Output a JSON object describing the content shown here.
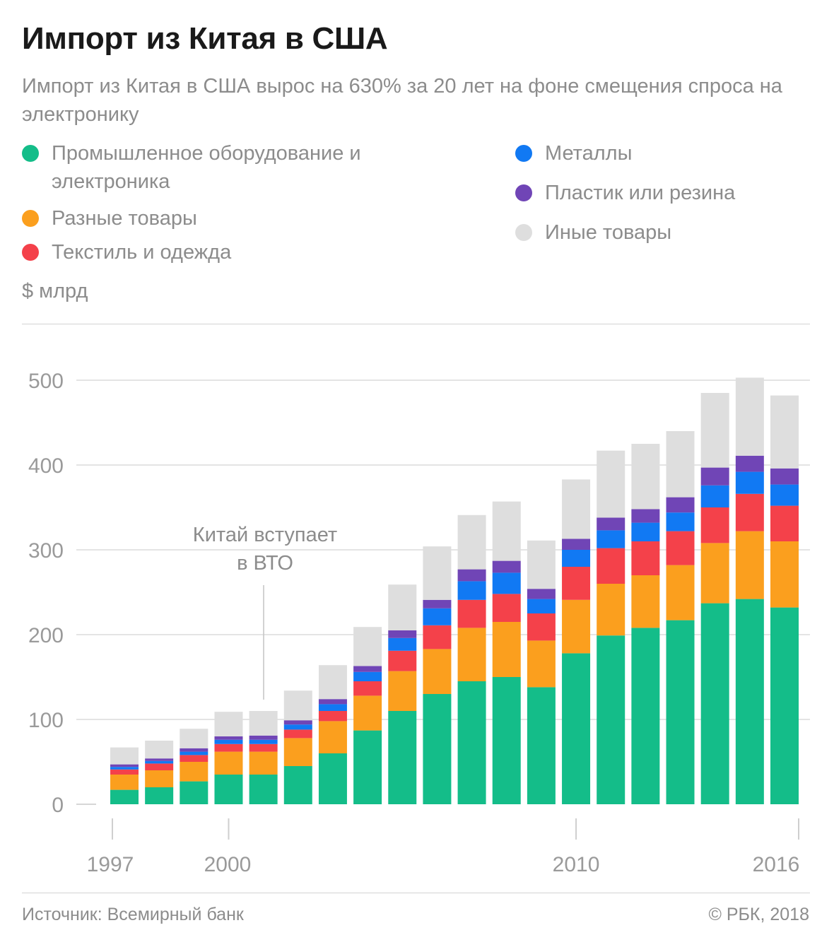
{
  "header": {
    "title": "Импорт из Китая в США",
    "subtitle": "Импорт из Китая в США вырос на 630% за 20 лет на фоне смещения спроса на электронику"
  },
  "unit_label": "$ млрд",
  "footer": {
    "source": "Источник: Всемирный банк",
    "credit": "© РБК, 2018"
  },
  "chart_data": {
    "type": "bar",
    "stacked": true,
    "years": [
      1997,
      1998,
      1999,
      2000,
      2001,
      2002,
      2003,
      2004,
      2005,
      2006,
      2007,
      2008,
      2009,
      2010,
      2011,
      2012,
      2013,
      2014,
      2015,
      2016
    ],
    "x_tick_labels": [
      1997,
      2000,
      2010,
      2016
    ],
    "y_ticks": [
      0,
      100,
      200,
      300,
      400,
      500
    ],
    "ylim": [
      0,
      500
    ],
    "grid": true,
    "legend_position": "top",
    "series": [
      {
        "name": "Промышленное оборудование и электроника",
        "color": "#14bd89",
        "values": [
          17,
          20,
          27,
          35,
          35,
          45,
          60,
          87,
          110,
          130,
          145,
          150,
          138,
          178,
          199,
          208,
          217,
          237,
          242,
          232
        ]
      },
      {
        "name": "Разные товары",
        "color": "#fb9f1e",
        "values": [
          18,
          20,
          23,
          27,
          27,
          33,
          38,
          41,
          47,
          53,
          63,
          65,
          55,
          63,
          61,
          62,
          65,
          71,
          80,
          78
        ]
      },
      {
        "name": "Текстиль и одежда",
        "color": "#f4414a",
        "values": [
          6,
          8,
          8,
          9,
          9,
          10,
          12,
          17,
          24,
          28,
          33,
          33,
          32,
          39,
          42,
          40,
          40,
          42,
          44,
          42
        ]
      },
      {
        "name": "Металлы",
        "color": "#1179f3",
        "values": [
          3,
          3,
          4,
          5,
          5,
          6,
          8,
          11,
          15,
          20,
          22,
          25,
          17,
          20,
          21,
          22,
          22,
          26,
          26,
          25
        ]
      },
      {
        "name": "Пластик или резина",
        "color": "#7045b6",
        "values": [
          3,
          3,
          4,
          4,
          5,
          5,
          6,
          7,
          9,
          10,
          14,
          14,
          12,
          13,
          15,
          16,
          18,
          21,
          19,
          19
        ]
      },
      {
        "name": "Иные товары",
        "color": "#dedede",
        "values": [
          20,
          21,
          23,
          29,
          29,
          35,
          40,
          46,
          54,
          63,
          64,
          70,
          57,
          70,
          79,
          77,
          78,
          88,
          92,
          86
        ]
      }
    ],
    "annotation": {
      "text_line1": "Китай вступает",
      "text_line2": "в ВТО",
      "year": 2001
    }
  }
}
